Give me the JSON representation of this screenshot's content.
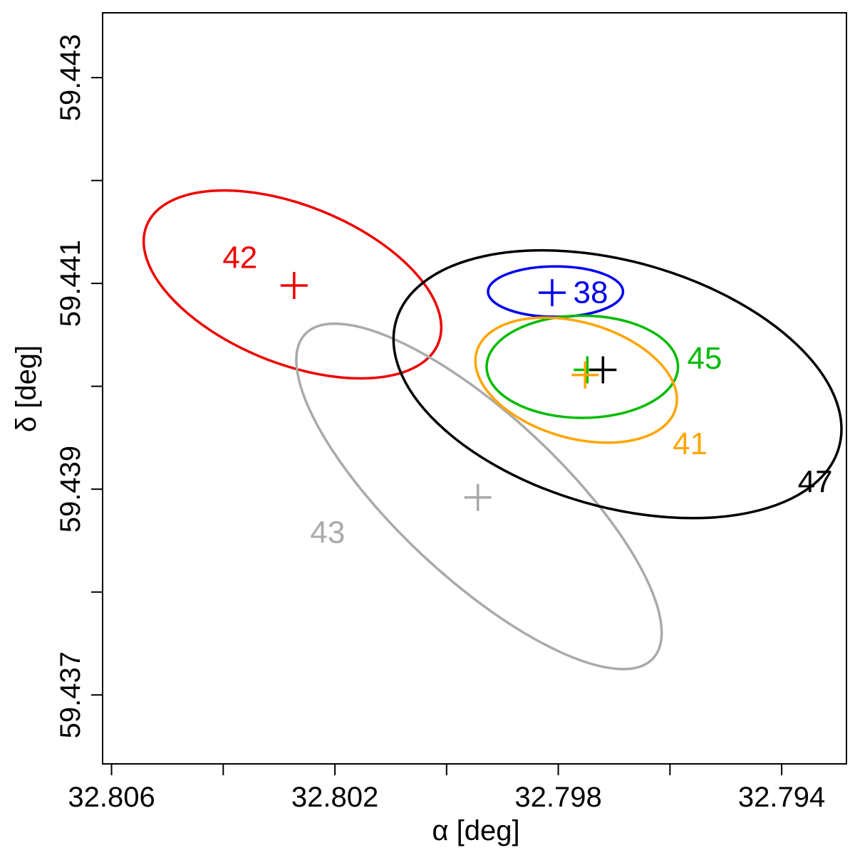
{
  "chart_data": {
    "type": "scatter",
    "xlabel": "α [deg]",
    "ylabel": "δ [deg]",
    "x_reversed": true,
    "xlim": [
      32.80616,
      32.79284
    ],
    "ylim": [
      59.43633,
      59.44363
    ],
    "x_major_ticks": [
      {
        "value": 32.806,
        "label": "32.806"
      },
      {
        "value": 32.802,
        "label": "32.802"
      },
      {
        "value": 32.798,
        "label": "32.798"
      },
      {
        "value": 32.794,
        "label": "32.794"
      }
    ],
    "x_minor_ticks": [
      32.804,
      32.8,
      32.796
    ],
    "y_major_ticks": [
      {
        "value": 59.443,
        "label": "59.443"
      },
      {
        "value": 59.441,
        "label": "59.441"
      },
      {
        "value": 59.439,
        "label": "59.439"
      },
      {
        "value": 59.437,
        "label": "59.437"
      }
    ],
    "y_minor_ticks": [
      59.442,
      59.44,
      59.438
    ],
    "grid": false,
    "legend": "none",
    "series": [
      {
        "label": "42",
        "color": "#ee0000",
        "center": {
          "x": 32.80276,
          "y": 59.44099
        },
        "semi_x": 0.002816,
        "semi_y": 0.000768,
        "rotation_deg": 22,
        "label_pos": {
          "x": 32.8037,
          "y": 59.44125
        }
      },
      {
        "label": "43",
        "color": "#aaaaaa",
        "center": {
          "x": 32.79942,
          "y": 59.43893
        },
        "semi_x": 0.00426,
        "semi_y": 0.000792,
        "rotation_deg": 43,
        "label_pos": {
          "x": 32.80213,
          "y": 59.43858
        }
      },
      {
        "label": "47",
        "color": "#000000",
        "center": {
          "x": 32.79694,
          "y": 59.44002
        },
        "semi_x": 0.004124,
        "semi_y": 0.001192,
        "rotation_deg": 16,
        "label_pos": {
          "x": 32.7934,
          "y": 59.43907
        }
      },
      {
        "label": "38",
        "color": "#0000ee",
        "center": {
          "x": 32.79805,
          "y": 59.44092
        },
        "semi_x": 0.001209,
        "semi_y": 0.000245,
        "rotation_deg": 0,
        "label_pos": {
          "x": 32.79742,
          "y": 59.44091
        }
      },
      {
        "label": "45",
        "color": "#00bb00",
        "center": {
          "x": 32.79757,
          "y": 59.44019
        },
        "semi_x": 0.001713,
        "semi_y": 0.000497,
        "rotation_deg": 0,
        "label_pos": {
          "x": 32.79538,
          "y": 59.44027
        }
      },
      {
        "label": "41",
        "color": "#ffa500",
        "center": {
          "x": 32.79768,
          "y": 59.44006
        },
        "semi_x": 0.001853,
        "semi_y": 0.000563,
        "rotation_deg": 16,
        "label_pos": {
          "x": 32.79564,
          "y": 59.43944
        }
      }
    ],
    "markers": [
      {
        "name": "42",
        "x": 32.80273,
        "y": 59.44098,
        "color": "#ee0000"
      },
      {
        "name": "43",
        "x": 32.79944,
        "y": 59.43892,
        "color": "#aaaaaa"
      },
      {
        "name": "38",
        "x": 32.79811,
        "y": 59.44091,
        "color": "#0000ee"
      },
      {
        "name": "45",
        "x": 32.79748,
        "y": 59.44016,
        "color": "#00bb00"
      },
      {
        "name": "41",
        "x": 32.79752,
        "y": 59.44011,
        "color": "#ffa500"
      },
      {
        "name": "47",
        "x": 32.7972,
        "y": 59.44016,
        "color": "#000000"
      }
    ]
  }
}
